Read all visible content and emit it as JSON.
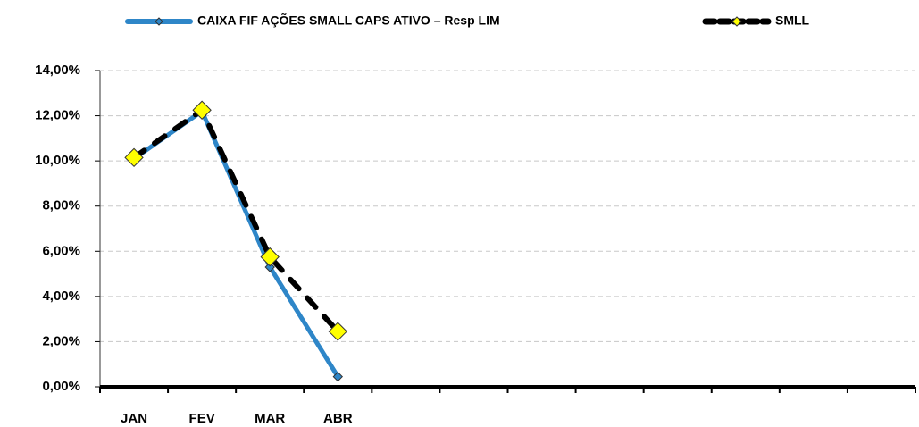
{
  "chart_data": {
    "type": "line",
    "categories": [
      "JAN",
      "FEV",
      "MAR",
      "ABR",
      null,
      null,
      null,
      null,
      null,
      null,
      null,
      null
    ],
    "series": [
      {
        "name": "CAIXA FIF AÇÕES SMALL CAPS ATIVO – Resp LIM",
        "color": "#2e86c8",
        "values": [
          10.1,
          12.2,
          5.3,
          0.45,
          null,
          null,
          null,
          null,
          null,
          null,
          null,
          null
        ]
      },
      {
        "name": "SMLL",
        "color": "#000000",
        "marker_color": "#ffff00",
        "values": [
          10.15,
          12.25,
          5.75,
          2.45,
          null,
          null,
          null,
          null,
          null,
          null,
          null,
          null
        ]
      }
    ],
    "ylim": [
      0,
      14
    ],
    "yticks": [
      {
        "value": 0,
        "label": "0,00%"
      },
      {
        "value": 2,
        "label": "2,00%"
      },
      {
        "value": 4,
        "label": "4,00%"
      },
      {
        "value": 6,
        "label": "6,00%"
      },
      {
        "value": 8,
        "label": "8,00%"
      },
      {
        "value": 10,
        "label": "10,00%"
      },
      {
        "value": 12,
        "label": "12,00%"
      },
      {
        "value": 14,
        "label": "14,00%"
      }
    ],
    "grid": true,
    "legend": "top"
  }
}
